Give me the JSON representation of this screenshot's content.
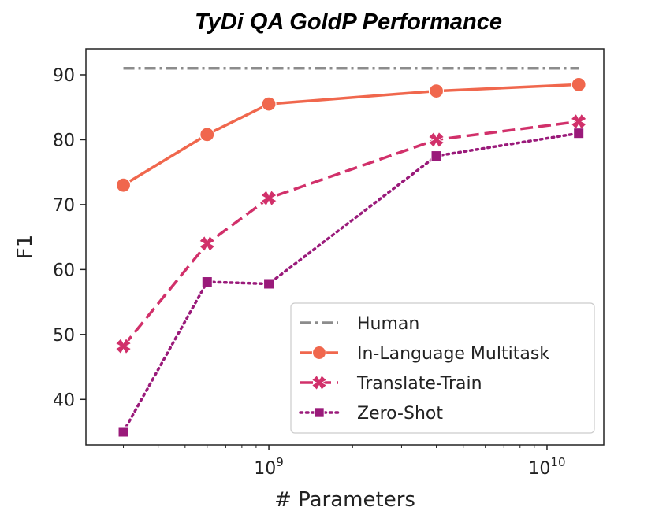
{
  "chart_data": {
    "type": "line",
    "title": "TyDi QA GoldP Performance",
    "xlabel": "# Parameters",
    "ylabel": "F1",
    "x_scale": "log",
    "xlim": [
      220000000.0,
      16000000000.0
    ],
    "ylim": [
      33,
      94
    ],
    "x_ticks": [
      {
        "value": 1000000000.0,
        "base": "10",
        "exp": "9"
      },
      {
        "value": 10000000000.0,
        "base": "10",
        "exp": "10"
      }
    ],
    "y_ticks": [
      40,
      50,
      60,
      70,
      80,
      90
    ],
    "legend_position": "lower-right",
    "grid": false,
    "series": [
      {
        "name": "Human",
        "style": "dashdot",
        "marker": "none",
        "color": "#8c8c8c",
        "x": [
          300000000.0,
          13000000000.0
        ],
        "y": [
          91,
          91
        ]
      },
      {
        "name": "In-Language Multitask",
        "style": "solid",
        "marker": "circle",
        "color": "#f0674d",
        "x": [
          300000000.0,
          600000000.0,
          1000000000.0,
          4000000000.0,
          13000000000.0
        ],
        "y": [
          73,
          80.8,
          85.5,
          87.5,
          88.5
        ]
      },
      {
        "name": "Translate-Train",
        "style": "dashed",
        "marker": "x",
        "color": "#d1306a",
        "x": [
          300000000.0,
          600000000.0,
          1000000000.0,
          4000000000.0,
          13000000000.0
        ],
        "y": [
          48.2,
          64,
          71,
          80,
          82.8
        ]
      },
      {
        "name": "Zero-Shot",
        "style": "dotted",
        "marker": "square",
        "color": "#9a1a7a",
        "x": [
          300000000.0,
          600000000.0,
          1000000000.0,
          4000000000.0,
          13000000000.0
        ],
        "y": [
          35,
          58.1,
          57.8,
          77.5,
          81
        ]
      }
    ]
  }
}
